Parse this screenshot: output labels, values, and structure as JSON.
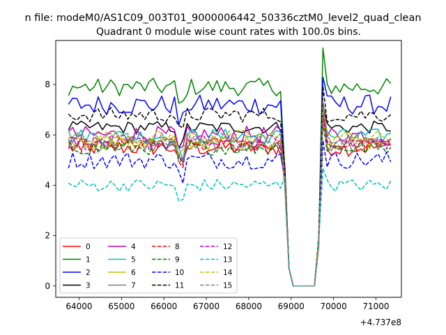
{
  "chart_data": {
    "type": "line",
    "suptitle": "n file: modeM0/AS1C09_003T01_9000006442_50336cztM0_level2_quad_clean",
    "title": "Quadrant 0 module wise count rates with 100.0s bins.",
    "xlabel": "",
    "ylabel": "",
    "x_offset_label": "+4.737e8",
    "xlim": [
      63450,
      71600
    ],
    "ylim": [
      -0.45,
      9.75
    ],
    "xticks": [
      64000,
      65000,
      66000,
      67000,
      68000,
      69000,
      70000,
      71000
    ],
    "yticks": [
      0,
      2,
      4,
      6,
      8
    ],
    "grid": false,
    "legend_position": "lower-left",
    "x_start": 63750,
    "x_step": 100,
    "gap": {
      "start_index": 52,
      "dip": [
        0.7,
        0.0,
        0.0,
        0.0,
        0.0,
        0.0,
        0.0
      ],
      "end_index": 60
    },
    "series": [
      {
        "name": "0",
        "color": "#ff0000",
        "dash": "solid",
        "mean": 5.5,
        "amp": 0.35
      },
      {
        "name": "1",
        "color": "#008000",
        "dash": "solid",
        "mean": 7.9,
        "amp": 0.35
      },
      {
        "name": "2",
        "color": "#0000ff",
        "dash": "solid",
        "mean": 7.2,
        "amp": 0.4
      },
      {
        "name": "3",
        "color": "#000000",
        "dash": "solid",
        "mean": 6.3,
        "amp": 0.25
      },
      {
        "name": "4",
        "color": "#bf00bf",
        "dash": "solid",
        "mean": 6.0,
        "amp": 0.35
      },
      {
        "name": "5",
        "color": "#00bfbf",
        "dash": "solid",
        "mean": 5.95,
        "amp": 0.3
      },
      {
        "name": "6",
        "color": "#bfbf00",
        "dash": "solid",
        "mean": 5.7,
        "amp": 0.3
      },
      {
        "name": "7",
        "color": "#808080",
        "dash": "solid",
        "mean": 5.6,
        "amp": 0.3
      },
      {
        "name": "8",
        "color": "#ff0000",
        "dash": "dashed",
        "mean": 5.6,
        "amp": 0.3
      },
      {
        "name": "9",
        "color": "#008000",
        "dash": "dashed",
        "mean": 5.5,
        "amp": 0.3
      },
      {
        "name": "10",
        "color": "#0000ff",
        "dash": "dashed",
        "mean": 5.0,
        "amp": 0.35
      },
      {
        "name": "11",
        "color": "#000000",
        "dash": "dashed",
        "mean": 6.8,
        "amp": 0.3
      },
      {
        "name": "12",
        "color": "#bf00bf",
        "dash": "dashed",
        "mean": 5.7,
        "amp": 0.3
      },
      {
        "name": "13",
        "color": "#00bfbf",
        "dash": "dashed",
        "mean": 4.0,
        "amp": 0.25
      },
      {
        "name": "14",
        "color": "#bfbf00",
        "dash": "dashed",
        "mean": 5.9,
        "amp": 0.3
      },
      {
        "name": "15",
        "color": "#808080",
        "dash": "dashed",
        "mean": 5.8,
        "amp": 0.3
      }
    ]
  }
}
